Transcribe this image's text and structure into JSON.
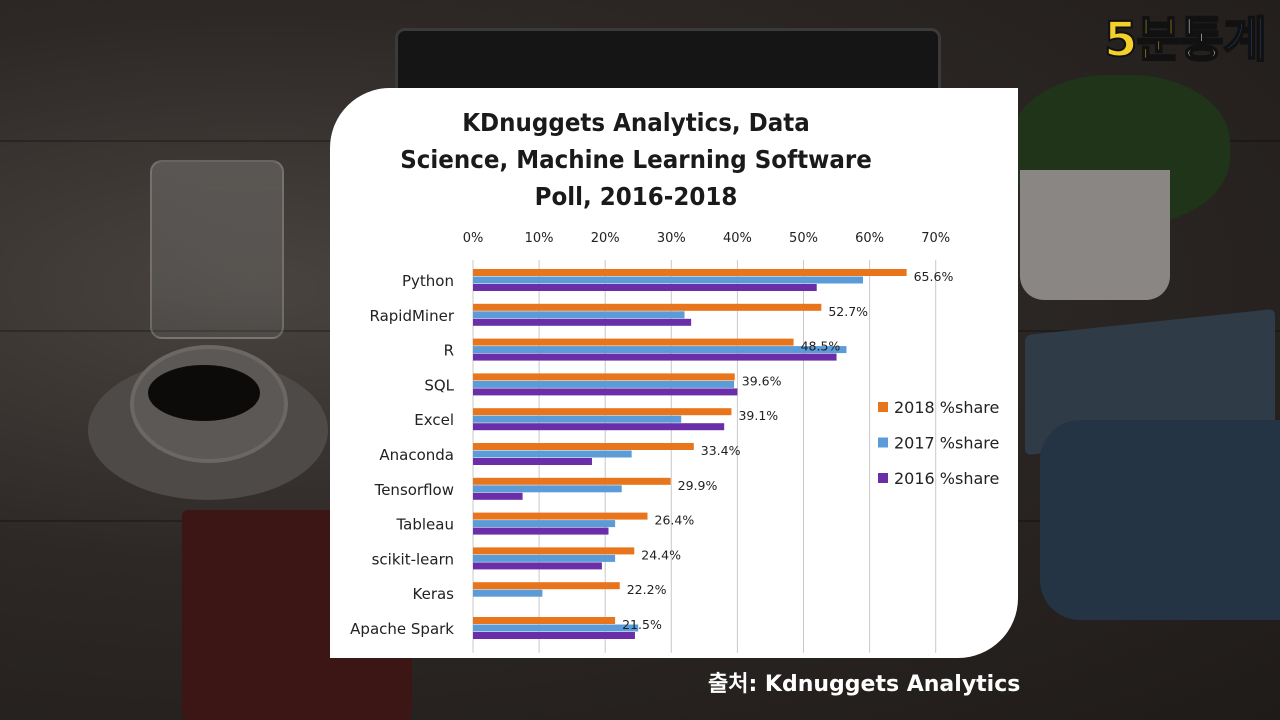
{
  "logo": {
    "part1": "5분",
    "part2": "통",
    "part3": "계"
  },
  "source_text": "출처: Kdnuggets Analytics",
  "colors": {
    "s2018": "#e8741c",
    "s2017": "#5a9bd8",
    "s2016": "#6a2ea8",
    "card": "#ffffff"
  },
  "chart_data": {
    "type": "bar",
    "orientation": "horizontal",
    "title": "KDnuggets Analytics, Data\nScience, Machine Learning Software\nPoll, 2016-2018",
    "xlim": [
      0,
      70
    ],
    "xticks": [
      "0%",
      "10%",
      "20%",
      "30%",
      "40%",
      "50%",
      "60%",
      "70%"
    ],
    "grid": true,
    "legend_position": "right",
    "categories": [
      "Python",
      "RapidMiner",
      "R",
      "SQL",
      "Excel",
      "Anaconda",
      "Tensorflow",
      "Tableau",
      "scikit-learn",
      "Keras",
      "Apache Spark"
    ],
    "series": [
      {
        "name": "2018 %share",
        "values": [
          65.6,
          52.7,
          48.5,
          39.6,
          39.1,
          33.4,
          29.9,
          26.4,
          24.4,
          22.2,
          21.5
        ]
      },
      {
        "name": "2017 %share",
        "values": [
          59,
          32,
          56.5,
          39.5,
          31.5,
          24,
          22.5,
          21.5,
          21.5,
          10.5,
          25
        ]
      },
      {
        "name": "2016 %share",
        "values": [
          52,
          33,
          55,
          40,
          38,
          18,
          7.5,
          20.5,
          19.5,
          null,
          24.5
        ]
      }
    ],
    "data_labels": [
      "65.6%",
      "52.7%",
      "48.5%",
      "39.6%",
      "39.1%",
      "33.4%",
      "29.9%",
      "26.4%",
      "24.4%",
      "22.2%",
      "21.5%"
    ]
  }
}
